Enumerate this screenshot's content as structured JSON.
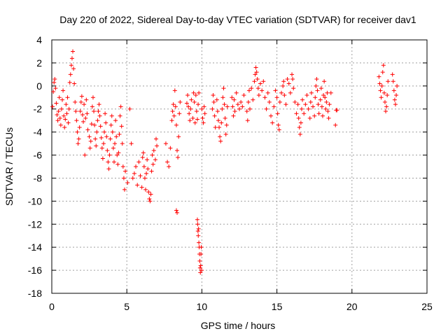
{
  "chart_data": {
    "type": "scatter",
    "title": "Day 220 of 2022, Sidereal Day-to-day VTEC variation (SDTVAR) for receiver dav1",
    "xlabel": "GPS time / hours",
    "ylabel": "SDTVAR / TECUs",
    "xlim": [
      0,
      25
    ],
    "ylim": [
      -18,
      4
    ],
    "xticks": [
      0,
      5,
      10,
      15,
      20,
      25
    ],
    "yticks": [
      4,
      2,
      0,
      -2,
      -4,
      -6,
      -8,
      -10,
      -12,
      -14,
      -16,
      -18
    ],
    "xtick_labels": [
      "0",
      "5",
      "10",
      "15",
      "20",
      "25"
    ],
    "ytick_labels": [
      "4",
      "2",
      "0",
      "-2",
      "-4",
      "-6",
      "-8",
      "-10",
      "-12",
      "-14",
      "-16",
      "-18"
    ],
    "grid": true,
    "marker": "+",
    "color": "#ff0000",
    "series": [
      {
        "name": "SDTVAR",
        "points": [
          [
            0.05,
            -1.8
          ],
          [
            0.1,
            -0.5
          ],
          [
            0.15,
            0.3
          ],
          [
            0.2,
            0.6
          ],
          [
            0.25,
            -0.2
          ],
          [
            0.3,
            -1.5
          ],
          [
            0.35,
            -2.5
          ],
          [
            0.4,
            -3.0
          ],
          [
            0.45,
            -2.2
          ],
          [
            0.5,
            -1.0
          ],
          [
            0.55,
            -2.8
          ],
          [
            0.6,
            -3.4
          ],
          [
            0.65,
            -2.0
          ],
          [
            0.7,
            -1.2
          ],
          [
            0.75,
            -0.4
          ],
          [
            0.8,
            -2.6
          ],
          [
            0.85,
            -3.6
          ],
          [
            0.9,
            -2.9
          ],
          [
            0.95,
            -1.6
          ],
          [
            1.0,
            -2.4
          ],
          [
            1.05,
            -1.0
          ],
          [
            1.1,
            -3.2
          ],
          [
            1.15,
            -2.0
          ],
          [
            1.2,
            0.3
          ],
          [
            1.25,
            1.0
          ],
          [
            1.3,
            1.8
          ],
          [
            1.35,
            2.4
          ],
          [
            1.4,
            3.0
          ],
          [
            1.45,
            1.5
          ],
          [
            1.5,
            0.2
          ],
          [
            1.55,
            -1.4
          ],
          [
            1.6,
            -2.2
          ],
          [
            1.65,
            -3.0
          ],
          [
            1.7,
            -4.0
          ],
          [
            1.75,
            -5.0
          ],
          [
            1.8,
            -4.6
          ],
          [
            1.85,
            -3.6
          ],
          [
            1.9,
            -2.2
          ],
          [
            1.95,
            -1.4
          ],
          [
            2.0,
            -0.9
          ],
          [
            2.05,
            -2.5
          ],
          [
            2.1,
            -3.1
          ],
          [
            2.15,
            -1.6
          ],
          [
            2.2,
            -6.0
          ],
          [
            2.25,
            -2.8
          ],
          [
            2.3,
            -1.2
          ],
          [
            2.35,
            -2.4
          ],
          [
            2.4,
            -3.8
          ],
          [
            2.5,
            -4.4
          ],
          [
            2.55,
            -5.4
          ],
          [
            2.6,
            -4.8
          ],
          [
            2.65,
            -3.3
          ],
          [
            2.7,
            -1.8
          ],
          [
            2.75,
            -1.0
          ],
          [
            2.8,
            -2.2
          ],
          [
            2.85,
            -3.4
          ],
          [
            2.9,
            -4.6
          ],
          [
            2.95,
            -5.2
          ],
          [
            3.0,
            -4.0
          ],
          [
            3.05,
            -3.0
          ],
          [
            3.1,
            -2.2
          ],
          [
            3.15,
            -1.6
          ],
          [
            3.2,
            -2.6
          ],
          [
            3.25,
            -3.5
          ],
          [
            3.3,
            -4.5
          ],
          [
            3.35,
            -5.4
          ],
          [
            3.4,
            -6.3
          ],
          [
            3.45,
            -5.0
          ],
          [
            3.5,
            -4.0
          ],
          [
            3.55,
            -2.4
          ],
          [
            3.6,
            -3.2
          ],
          [
            3.65,
            -4.4
          ],
          [
            3.7,
            -5.6
          ],
          [
            3.75,
            -6.6
          ],
          [
            3.8,
            -7.2
          ],
          [
            3.85,
            -6.0
          ],
          [
            3.9,
            -4.6
          ],
          [
            3.95,
            -3.4
          ],
          [
            4.0,
            -2.6
          ],
          [
            4.05,
            -4.0
          ],
          [
            4.1,
            -5.4
          ],
          [
            4.15,
            -6.6
          ],
          [
            4.2,
            -5.0
          ],
          [
            4.25,
            -3.0
          ],
          [
            4.3,
            -4.4
          ],
          [
            4.35,
            -6.0
          ],
          [
            4.4,
            -6.8
          ],
          [
            4.45,
            -5.8
          ],
          [
            4.5,
            -4.2
          ],
          [
            4.55,
            -2.6
          ],
          [
            4.6,
            -1.8
          ],
          [
            4.65,
            -3.5
          ],
          [
            4.7,
            -5.0
          ],
          [
            4.75,
            -7.0
          ],
          [
            4.8,
            -8.0
          ],
          [
            4.85,
            -9.0
          ],
          [
            4.9,
            -7.4
          ],
          [
            5.05,
            -8.4
          ],
          [
            5.2,
            -2.0
          ],
          [
            5.3,
            -5.0
          ],
          [
            5.4,
            -8.0
          ],
          [
            5.5,
            -7.6
          ],
          [
            5.6,
            -7.0
          ],
          [
            5.7,
            -8.6
          ],
          [
            5.8,
            -6.6
          ],
          [
            5.9,
            -7.8
          ],
          [
            6.0,
            -8.8
          ],
          [
            6.05,
            -6.2
          ],
          [
            6.1,
            -5.8
          ],
          [
            6.15,
            -7.0
          ],
          [
            6.2,
            -8.0
          ],
          [
            6.25,
            -9.0
          ],
          [
            6.3,
            -7.6
          ],
          [
            6.35,
            -6.4
          ],
          [
            6.4,
            -7.2
          ],
          [
            6.45,
            -9.2
          ],
          [
            6.5,
            -9.8
          ],
          [
            6.55,
            -10.0
          ],
          [
            6.6,
            -9.4
          ],
          [
            6.65,
            -7.4
          ],
          [
            6.7,
            -6.0
          ],
          [
            6.75,
            -6.8
          ],
          [
            6.8,
            -5.6
          ],
          [
            6.9,
            -6.4
          ],
          [
            6.95,
            -4.6
          ],
          [
            7.0,
            -5.2
          ],
          [
            7.6,
            -5.0
          ],
          [
            7.7,
            -6.6
          ],
          [
            7.8,
            -7.0
          ],
          [
            7.9,
            -5.4
          ],
          [
            8.0,
            -3.0
          ],
          [
            8.05,
            -2.2
          ],
          [
            8.1,
            -1.6
          ],
          [
            8.15,
            -2.6
          ],
          [
            8.2,
            -0.4
          ],
          [
            8.25,
            -1.8
          ],
          [
            8.3,
            -3.4
          ],
          [
            8.35,
            -5.6
          ],
          [
            8.4,
            -6.2
          ],
          [
            8.45,
            -4.4
          ],
          [
            8.5,
            -2.4
          ],
          [
            8.55,
            -1.4
          ],
          [
            8.3,
            -10.8
          ],
          [
            8.35,
            -11.0
          ],
          [
            9.0,
            -1.5
          ],
          [
            9.05,
            -0.8
          ],
          [
            9.1,
            -1.8
          ],
          [
            9.15,
            -2.4
          ],
          [
            9.2,
            -3.0
          ],
          [
            9.25,
            -2.0
          ],
          [
            9.3,
            -1.2
          ],
          [
            9.4,
            -2.8
          ],
          [
            9.45,
            -0.6
          ],
          [
            9.5,
            -1.4
          ],
          [
            9.55,
            -3.2
          ],
          [
            9.6,
            -0.8
          ],
          [
            9.65,
            -2.2
          ],
          [
            9.7,
            -2.9
          ],
          [
            9.75,
            -1.6
          ],
          [
            9.8,
            -0.6
          ],
          [
            9.7,
            -11.6
          ],
          [
            9.72,
            -12.0
          ],
          [
            9.74,
            -12.6
          ],
          [
            9.76,
            -13.0
          ],
          [
            9.78,
            -12.4
          ],
          [
            9.8,
            -13.6
          ],
          [
            9.82,
            -14.0
          ],
          [
            9.84,
            -14.6
          ],
          [
            9.86,
            -15.2
          ],
          [
            9.88,
            -15.8
          ],
          [
            9.9,
            -16.2
          ],
          [
            9.92,
            -15.6
          ],
          [
            9.94,
            -14.6
          ],
          [
            9.96,
            -14.0
          ],
          [
            9.98,
            -16.0
          ],
          [
            10.0,
            -2.0
          ],
          [
            10.05,
            -2.8
          ],
          [
            10.1,
            -3.2
          ],
          [
            10.15,
            -1.8
          ],
          [
            10.2,
            -2.4
          ],
          [
            10.7,
            -2.0
          ],
          [
            10.75,
            -0.8
          ],
          [
            10.8,
            -1.4
          ],
          [
            10.85,
            -2.6
          ],
          [
            10.9,
            -3.6
          ],
          [
            11.0,
            -1.2
          ],
          [
            11.05,
            -2.2
          ],
          [
            11.1,
            -3.0
          ],
          [
            11.15,
            -3.6
          ],
          [
            11.2,
            -4.4
          ],
          [
            11.25,
            -4.8
          ],
          [
            11.3,
            -3.2
          ],
          [
            11.35,
            -2.0
          ],
          [
            11.4,
            -1.0
          ],
          [
            11.45,
            -0.2
          ],
          [
            11.5,
            -1.6
          ],
          [
            11.55,
            -2.8
          ],
          [
            11.6,
            -4.2
          ],
          [
            11.65,
            -3.4
          ],
          [
            11.7,
            -1.8
          ],
          [
            12.0,
            -1.0
          ],
          [
            12.05,
            -1.8
          ],
          [
            12.1,
            -2.6
          ],
          [
            12.15,
            -1.2
          ],
          [
            12.2,
            -2.2
          ],
          [
            12.3,
            -0.6
          ],
          [
            12.4,
            -1.6
          ],
          [
            12.5,
            -2.0
          ],
          [
            12.6,
            -1.4
          ],
          [
            12.7,
            -1.8
          ],
          [
            12.8,
            -0.8
          ],
          [
            13.0,
            -2.2
          ],
          [
            13.05,
            -3.0
          ],
          [
            13.1,
            -1.4
          ],
          [
            13.15,
            -0.4
          ],
          [
            13.2,
            -2.0
          ],
          [
            13.3,
            -0.2
          ],
          [
            13.4,
            -1.2
          ],
          [
            13.5,
            0.4
          ],
          [
            13.55,
            1.0
          ],
          [
            13.6,
            1.6
          ],
          [
            13.65,
            1.2
          ],
          [
            13.7,
            0.6
          ],
          [
            13.75,
            -0.2
          ],
          [
            13.8,
            -0.8
          ],
          [
            13.9,
            0.2
          ],
          [
            14.0,
            -0.4
          ],
          [
            14.1,
            0.4
          ],
          [
            14.2,
            -1.0
          ],
          [
            14.3,
            -2.0
          ],
          [
            14.4,
            -0.6
          ],
          [
            14.5,
            -1.4
          ],
          [
            14.6,
            -2.6
          ],
          [
            14.7,
            -3.2
          ],
          [
            14.8,
            -1.8
          ],
          [
            14.9,
            -0.4
          ],
          [
            15.0,
            -1.0
          ],
          [
            15.05,
            -2.4
          ],
          [
            15.1,
            -3.4
          ],
          [
            15.15,
            -3.8
          ],
          [
            15.2,
            -1.4
          ],
          [
            15.3,
            -0.6
          ],
          [
            15.4,
            0.0
          ],
          [
            15.45,
            0.4
          ],
          [
            15.5,
            -0.8
          ],
          [
            15.6,
            -1.6
          ],
          [
            15.7,
            0.6
          ],
          [
            15.8,
            0.2
          ],
          [
            15.9,
            -0.6
          ],
          [
            16.0,
            1.0
          ],
          [
            16.05,
            0.6
          ],
          [
            16.1,
            -0.2
          ],
          [
            16.2,
            -1.4
          ],
          [
            16.3,
            -2.4
          ],
          [
            16.4,
            -1.6
          ],
          [
            16.45,
            -2.8
          ],
          [
            16.5,
            -3.6
          ],
          [
            16.55,
            -4.2
          ],
          [
            16.6,
            -3.2
          ],
          [
            16.65,
            -2.0
          ],
          [
            16.7,
            -1.2
          ],
          [
            16.8,
            -2.4
          ],
          [
            16.9,
            -1.6
          ],
          [
            17.0,
            -0.8
          ],
          [
            17.1,
            -2.0
          ],
          [
            17.2,
            -2.8
          ],
          [
            17.25,
            -1.4
          ],
          [
            17.3,
            -0.6
          ],
          [
            17.4,
            -1.8
          ],
          [
            17.5,
            -2.6
          ],
          [
            17.55,
            -1.0
          ],
          [
            17.6,
            0.0
          ],
          [
            17.65,
            0.6
          ],
          [
            17.7,
            -0.4
          ],
          [
            17.75,
            -1.6
          ],
          [
            17.8,
            -2.4
          ],
          [
            17.9,
            -1.2
          ],
          [
            17.95,
            -0.2
          ],
          [
            18.0,
            -1.8
          ],
          [
            18.05,
            -2.6
          ],
          [
            18.1,
            -0.8
          ],
          [
            18.15,
            0.4
          ],
          [
            18.2,
            -1.0
          ],
          [
            18.25,
            -2.0
          ],
          [
            18.3,
            -1.4
          ],
          [
            18.35,
            -0.6
          ],
          [
            18.4,
            -2.2
          ],
          [
            18.45,
            -2.8
          ],
          [
            18.5,
            -1.6
          ],
          [
            18.6,
            -0.6
          ],
          [
            18.9,
            -3.4
          ],
          [
            18.95,
            -2.1
          ],
          [
            19.0,
            -2.1
          ],
          [
            21.8,
            0.8
          ],
          [
            21.85,
            0.2
          ],
          [
            21.9,
            -0.4
          ],
          [
            21.95,
            -1.0
          ],
          [
            22.0,
            0.0
          ],
          [
            22.05,
            1.2
          ],
          [
            22.1,
            1.8
          ],
          [
            22.15,
            -0.6
          ],
          [
            22.2,
            -1.4
          ],
          [
            22.25,
            -2.2
          ],
          [
            22.3,
            -1.8
          ],
          [
            22.35,
            -0.8
          ],
          [
            22.4,
            0.4
          ],
          [
            22.7,
            1.0
          ],
          [
            22.75,
            0.4
          ],
          [
            22.8,
            -0.4
          ],
          [
            22.85,
            -1.2
          ],
          [
            22.9,
            -1.6
          ],
          [
            22.95,
            -0.8
          ],
          [
            23.0,
            0.0
          ]
        ]
      }
    ]
  }
}
